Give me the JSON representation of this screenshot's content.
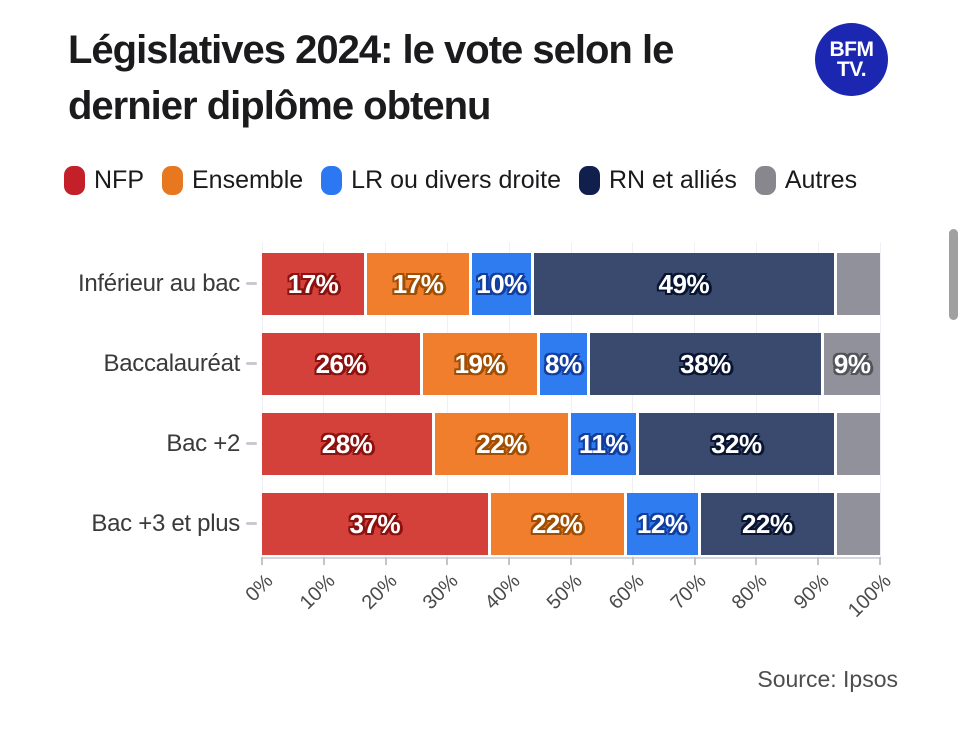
{
  "header": {
    "title": "Législatives 2024: le vote selon le dernier diplôme obtenu",
    "logo": {
      "line1": "BFM",
      "line2": "TV.",
      "bg_color": "#1b27b0"
    }
  },
  "chart_data": {
    "type": "bar",
    "stacked": true,
    "orientation": "horizontal",
    "title": "Législatives 2024: le vote selon le dernier diplôme obtenu",
    "categories": [
      "Inférieur au bac",
      "Baccalauréat",
      "Bac +2",
      "Bac +3 et plus"
    ],
    "series": [
      {
        "name": "NFP",
        "values": [
          17,
          26,
          28,
          37
        ],
        "color": "#d4403a",
        "legend_color": "#c32029",
        "label_shadow": "#8c120f"
      },
      {
        "name": "Ensemble",
        "values": [
          17,
          19,
          22,
          22
        ],
        "color": "#f07e2d",
        "legend_color": "#e87820",
        "label_shadow": "#a04e02"
      },
      {
        "name": "LR ou divers droite",
        "values": [
          10,
          8,
          11,
          12
        ],
        "color": "#2f7cf0",
        "legend_color": "#2b78f2",
        "label_shadow": "#123f9f"
      },
      {
        "name": "RN et alliés",
        "values": [
          49,
          38,
          32,
          22
        ],
        "color": "#394a6e",
        "legend_color": "#111f4d",
        "label_shadow": "#0a1531"
      },
      {
        "name": "Autres",
        "values": [
          7,
          9,
          7,
          7
        ],
        "color": "#90919a",
        "legend_color": "#87878d",
        "label_shadow": "#53535a"
      }
    ],
    "value_suffix": "%",
    "min_label_value": 8,
    "x_ticks": [
      "0%",
      "10%",
      "20%",
      "30%",
      "40%",
      "50%",
      "60%",
      "70%",
      "80%",
      "90%",
      "100%"
    ],
    "xlim": [
      0,
      100
    ],
    "grid": true,
    "legend_position": "top"
  },
  "footer": {
    "source": "Source: Ipsos"
  }
}
